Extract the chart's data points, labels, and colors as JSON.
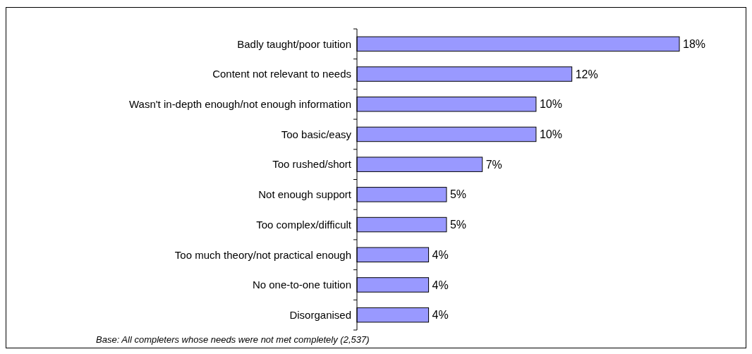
{
  "chart_data": {
    "type": "bar",
    "orientation": "horizontal",
    "data_labels": true,
    "color": "#9999ff",
    "categories": [
      "Badly taught/poor tuition",
      "Content not relevant to needs",
      "Wasn't in-depth enough/not enough information",
      "Too basic/easy",
      "Too rushed/short",
      "Not enough support",
      "Too complex/difficult",
      "Too much theory/not practical enough",
      "No one-to-one tuition",
      "Disorganised"
    ],
    "values": [
      18,
      12,
      10,
      10,
      7,
      5,
      5,
      4,
      4,
      4
    ],
    "value_labels": [
      "18%",
      "12%",
      "10%",
      "10%",
      "7%",
      "5%",
      "5%",
      "4%",
      "4%",
      "4%"
    ],
    "annotations": [
      "Base: All completers whose needs were not met completely (2,537)"
    ]
  }
}
